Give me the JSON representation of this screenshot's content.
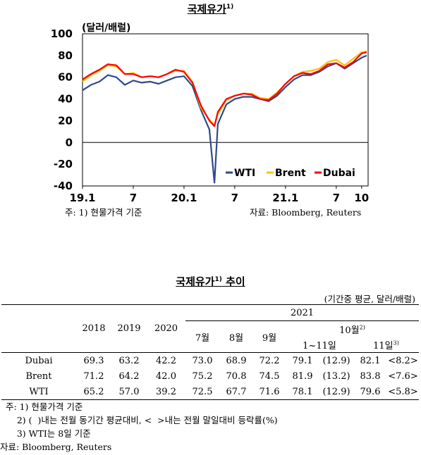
{
  "chart": {
    "title": "국제유가",
    "title_sup": "1)",
    "unit": "(달러/배럴)",
    "note": "주: 1) 현물가격 기준",
    "source": "자료: Bloomberg,  Reuters"
  },
  "chart_data": {
    "type": "line",
    "title": "국제유가",
    "ylabel": "(달러/배럴)",
    "ylim": [
      -40,
      100
    ],
    "yticks": [
      100,
      80,
      60,
      40,
      20,
      0,
      -20,
      -40
    ],
    "xticks": [
      {
        "label": "19.1",
        "t": 0
      },
      {
        "label": "7",
        "t": 6
      },
      {
        "label": "20.1",
        "t": 12
      },
      {
        "label": "7",
        "t": 18
      },
      {
        "label": "21.1",
        "t": 24
      },
      {
        "label": "7",
        "t": 30
      },
      {
        "label": "10",
        "t": 33
      }
    ],
    "x_unit": "months since 2019-01",
    "legend_position": "bottom-right",
    "colors": {
      "WTI": "#2e4a8a",
      "Brent": "#ffc000",
      "Dubai": "#ff0000"
    },
    "series": [
      {
        "name": "WTI",
        "x": [
          0,
          1,
          2,
          3,
          4,
          5,
          6,
          7,
          8,
          9,
          10,
          11,
          12,
          13,
          14,
          15,
          15.6,
          16,
          17,
          18,
          19,
          20,
          21,
          22,
          23,
          24,
          25,
          26,
          27,
          28,
          29,
          30,
          31,
          32,
          33,
          33.6
        ],
        "values": [
          48,
          53,
          56,
          62,
          60,
          53,
          57,
          55,
          56,
          54,
          57,
          60,
          61,
          52,
          30,
          12,
          -37,
          17,
          35,
          40,
          42,
          42,
          40,
          38,
          43,
          51,
          58,
          62,
          62,
          65,
          70,
          73,
          68,
          73,
          78,
          80
        ]
      },
      {
        "name": "Brent",
        "x": [
          0,
          1,
          2,
          3,
          4,
          5,
          6,
          7,
          8,
          9,
          10,
          11,
          12,
          13,
          14,
          15,
          15.6,
          16,
          17,
          18,
          19,
          20,
          21,
          22,
          23,
          24,
          25,
          26,
          27,
          28,
          29,
          30,
          31,
          32,
          33,
          33.6
        ],
        "values": [
          56,
          62,
          66,
          71,
          70,
          63,
          64,
          60,
          61,
          60,
          63,
          66,
          66,
          56,
          32,
          21,
          16,
          26,
          39,
          43,
          45,
          45,
          41,
          40,
          46,
          54,
          61,
          65,
          66,
          68,
          74,
          76,
          71,
          77,
          83,
          84
        ]
      },
      {
        "name": "Dubai",
        "x": [
          0,
          1,
          2,
          3,
          4,
          5,
          6,
          7,
          8,
          9,
          10,
          11,
          12,
          13,
          14,
          15,
          15.6,
          16,
          17,
          18,
          19,
          20,
          21,
          22,
          23,
          24,
          25,
          26,
          27,
          28,
          29,
          30,
          31,
          32,
          33,
          33.6
        ],
        "values": [
          58,
          63,
          67,
          72,
          71,
          63,
          63,
          60,
          61,
          60,
          63,
          67,
          65,
          55,
          34,
          20,
          15,
          28,
          40,
          43,
          45,
          44,
          40,
          39,
          45,
          54,
          61,
          64,
          63,
          66,
          72,
          73,
          69,
          74,
          82,
          83
        ]
      }
    ]
  },
  "table": {
    "title": "국제유가",
    "title_sup": "1)",
    "title_suffix": "추이",
    "unit": "(기간중 평균, 달러/배럴)",
    "year_2021": "2021",
    "headers": [
      "2018",
      "2019",
      "2020",
      "7월",
      "8월",
      "9월"
    ],
    "oct": "10월",
    "oct_sup": "2)",
    "sub_1_11": "1~11일",
    "sub_11": "11일",
    "sub_11_sup": "3)",
    "rows": [
      {
        "label": "Dubai",
        "cells": [
          "69.3",
          "63.2",
          "42.2",
          "73.0",
          "68.9",
          "72.2",
          "79.1",
          "(12.9)",
          "82.1",
          "<8.2>"
        ]
      },
      {
        "label": "Brent",
        "cells": [
          "71.2",
          "64.2",
          "42.0",
          "75.2",
          "70.8",
          "74.5",
          "81.9",
          "(13.2)",
          "83.8",
          "<7.6>"
        ]
      },
      {
        "label": "WTI",
        "cells": [
          "65.2",
          "57.0",
          "39.2",
          "72.5",
          "67.7",
          "71.6",
          "78.1",
          "(12.9)",
          "79.6",
          "<5.8>"
        ]
      }
    ],
    "notes": [
      "  주: 1) 현물가격 기준",
      "      2) (  )내는 전월 동기간 평균대비, <  >내는 전월 말일대비 등락률(%)",
      "      3) WTI는 8일 기준"
    ],
    "source": "자료: Bloomberg, Reuters"
  }
}
